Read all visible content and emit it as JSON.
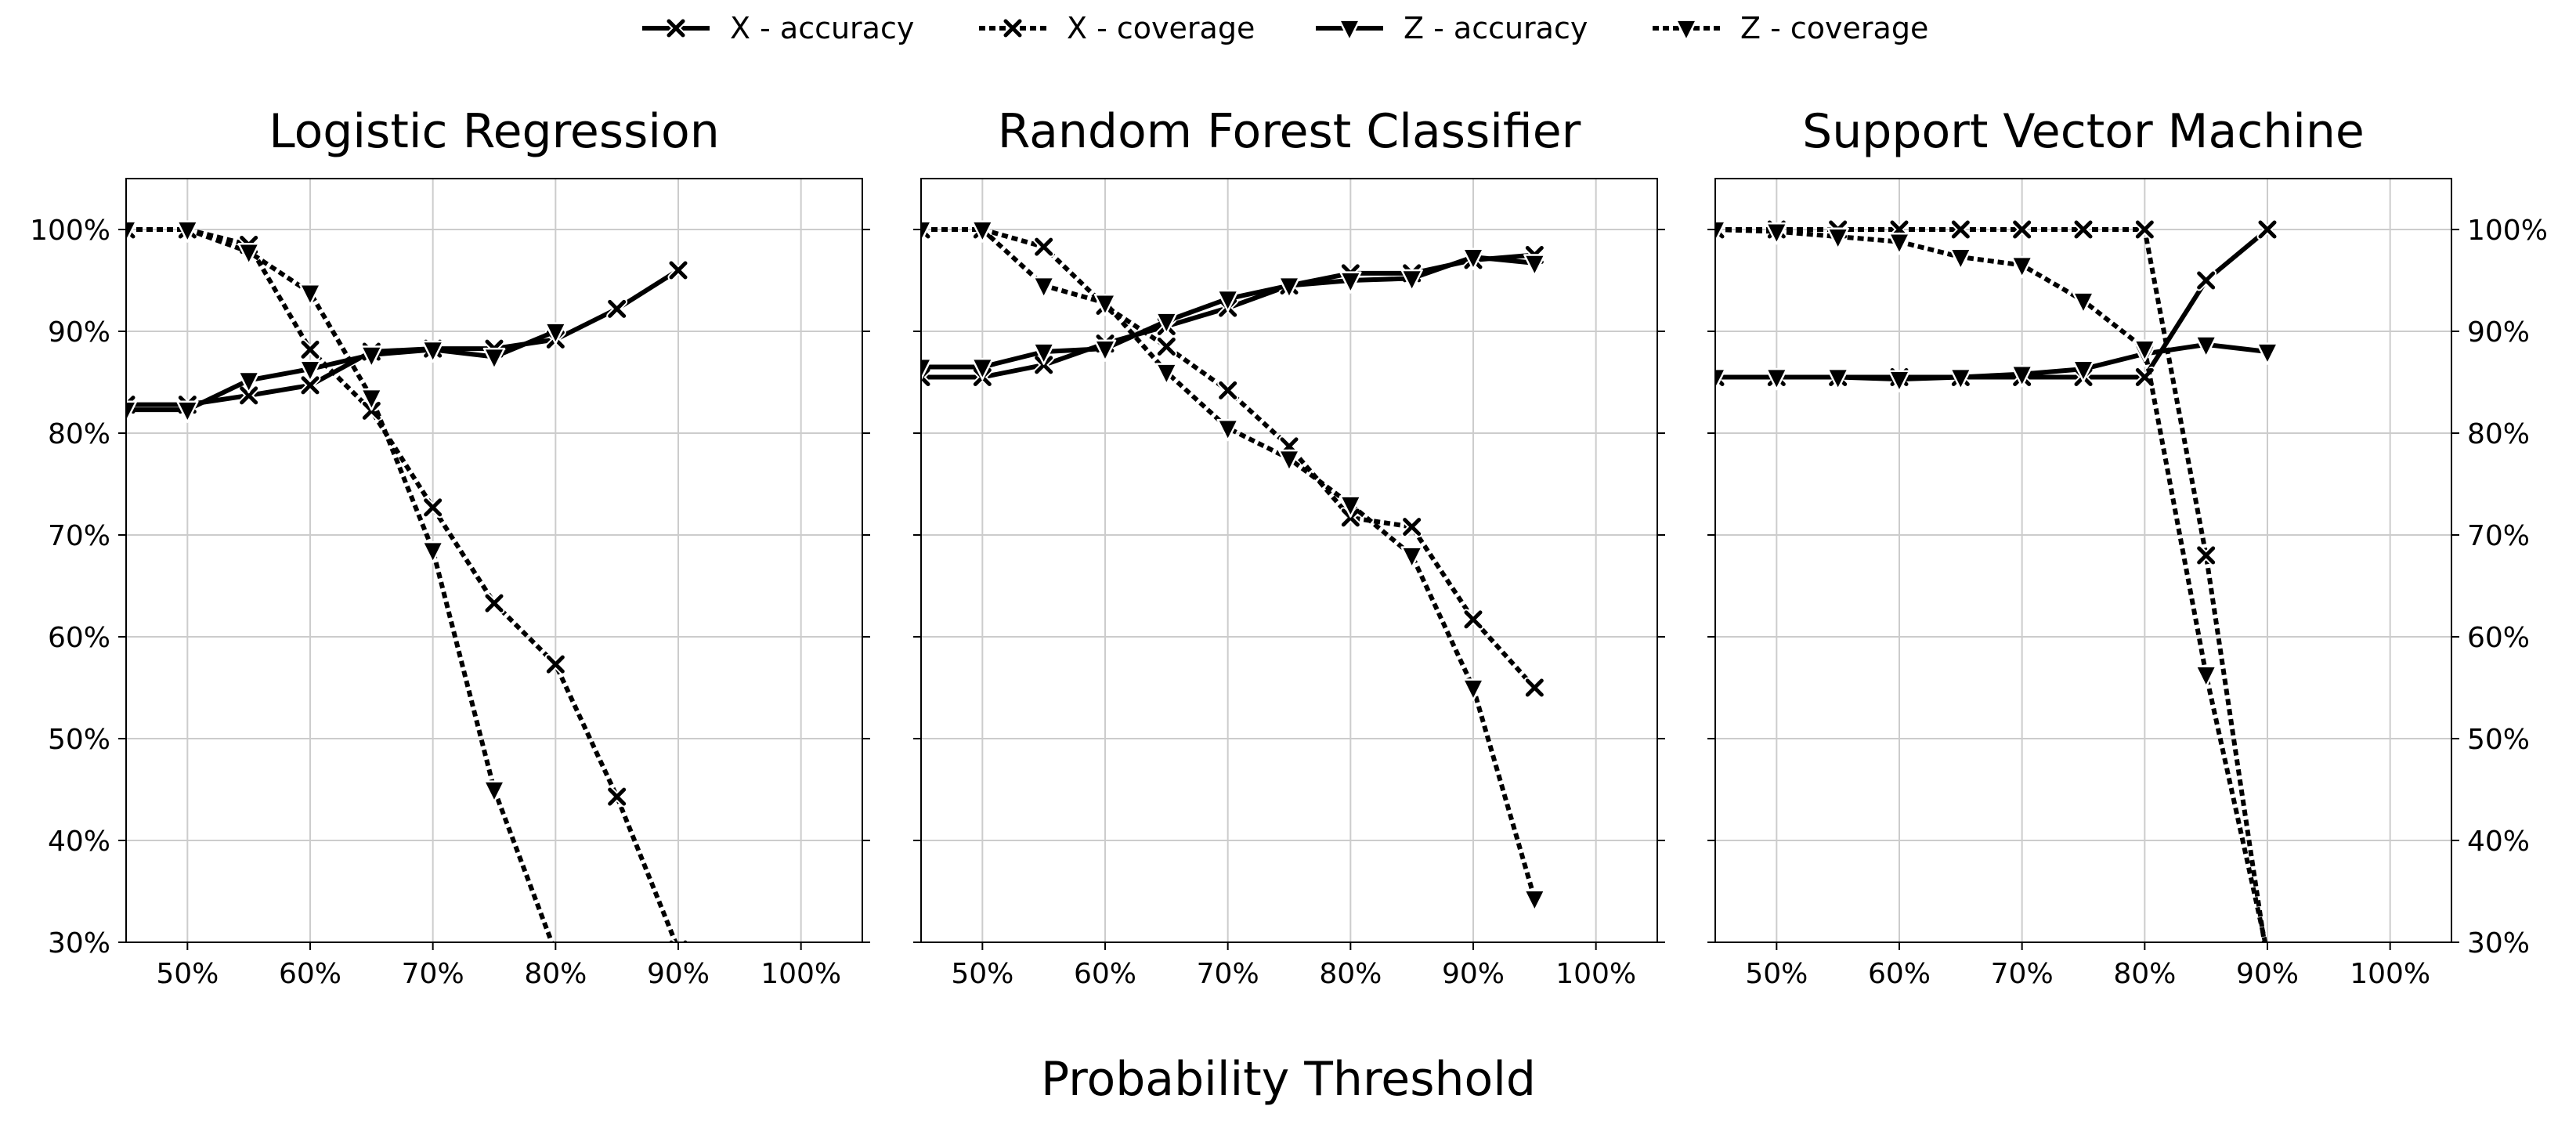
{
  "figure": {
    "xlabel": "Probability Threshold"
  },
  "legend": {
    "placement": "top-center",
    "entries": [
      {
        "label": "X - accuracy",
        "marker": "x-marker",
        "linestyle": "solid"
      },
      {
        "label": "X - coverage",
        "marker": "x-marker",
        "linestyle": "dotted"
      },
      {
        "label": "Z - accuracy",
        "marker": "triangle-down-marker",
        "linestyle": "solid"
      },
      {
        "label": "Z - coverage",
        "marker": "triangle-down-marker",
        "linestyle": "dotted"
      }
    ]
  },
  "colors": {
    "line": "#000000",
    "grid": "#cccccc",
    "background": "#ffffff"
  },
  "chart_data": [
    {
      "type": "line",
      "title": "Logistic Regression",
      "xlim": [
        45,
        105
      ],
      "ylim": [
        30,
        105
      ],
      "xticks": [
        "50%",
        "60%",
        "70%",
        "80%",
        "90%",
        "100%"
      ],
      "yticks": [
        "100%",
        "90%",
        "80%",
        "70%",
        "60%",
        "50%",
        "40%",
        "30%"
      ],
      "yaxis_labels": "left",
      "grid": true,
      "series": [
        {
          "name": "X - accuracy",
          "x": [
            45,
            50,
            55,
            60,
            65,
            70,
            75,
            80,
            85,
            90
          ],
          "y": [
            82.8,
            82.8,
            83.7,
            84.7,
            88.0,
            88.3,
            88.3,
            89.2,
            92.2,
            96.0
          ]
        },
        {
          "name": "X - coverage",
          "x": [
            45,
            50,
            55,
            60,
            65,
            70,
            75,
            80,
            85,
            90
          ],
          "y": [
            100,
            100,
            98.5,
            88.2,
            82.2,
            72.7,
            63.3,
            57.3,
            44.3,
            29.3
          ]
        },
        {
          "name": "Z - accuracy",
          "x": [
            45,
            50,
            55,
            60,
            65,
            70,
            75,
            80
          ],
          "y": [
            82.3,
            82.3,
            85.2,
            86.3,
            87.7,
            88.2,
            87.5,
            90.0
          ]
        },
        {
          "name": "Z - coverage",
          "x": [
            45,
            50,
            55,
            60,
            65,
            70,
            75,
            80
          ],
          "y": [
            100,
            100,
            97.8,
            93.8,
            83.5,
            68.5,
            45.0,
            29.0
          ]
        }
      ]
    },
    {
      "type": "line",
      "title": "Random Forest Classifier",
      "xlim": [
        45,
        105
      ],
      "ylim": [
        30,
        105
      ],
      "xticks": [
        "50%",
        "60%",
        "70%",
        "80%",
        "90%",
        "100%"
      ],
      "yticks": [
        "100%",
        "90%",
        "80%",
        "70%",
        "60%",
        "50%",
        "40%",
        "30%"
      ],
      "yaxis_labels": "none",
      "grid": true,
      "series": [
        {
          "name": "X - accuracy",
          "x": [
            45,
            50,
            55,
            60,
            65,
            70,
            75,
            80,
            85,
            90,
            95
          ],
          "y": [
            85.5,
            85.5,
            86.7,
            88.8,
            90.5,
            92.3,
            94.5,
            95.7,
            95.7,
            97.0,
            97.5
          ]
        },
        {
          "name": "X - coverage",
          "x": [
            45,
            50,
            55,
            60,
            65,
            70,
            75,
            80,
            85,
            90,
            95
          ],
          "y": [
            100,
            100,
            98.3,
            92.5,
            88.5,
            84.2,
            78.7,
            71.7,
            70.8,
            61.7,
            55.0
          ]
        },
        {
          "name": "Z - accuracy",
          "x": [
            45,
            50,
            55,
            60,
            65,
            70,
            75,
            80,
            85,
            90,
            95
          ],
          "y": [
            86.5,
            86.5,
            88.0,
            88.3,
            91.0,
            93.2,
            94.5,
            95.0,
            95.2,
            97.3,
            96.7
          ]
        },
        {
          "name": "Z - coverage",
          "x": [
            45,
            50,
            55,
            60,
            65,
            70,
            75,
            80,
            85,
            90,
            95
          ],
          "y": [
            100,
            100,
            94.5,
            92.8,
            86.0,
            80.5,
            77.5,
            73.0,
            68.0,
            55.0,
            34.3
          ]
        }
      ]
    },
    {
      "type": "line",
      "title": "Support Vector Machine",
      "xlim": [
        45,
        105
      ],
      "ylim": [
        30,
        105
      ],
      "xticks": [
        "50%",
        "60%",
        "70%",
        "80%",
        "90%",
        "100%"
      ],
      "yticks": [
        "100%",
        "90%",
        "80%",
        "70%",
        "60%",
        "50%",
        "40%",
        "30%"
      ],
      "yaxis_labels": "right",
      "grid": true,
      "series": [
        {
          "name": "X - accuracy",
          "x": [
            45,
            50,
            55,
            60,
            65,
            70,
            75,
            80,
            85,
            90
          ],
          "y": [
            85.5,
            85.5,
            85.5,
            85.5,
            85.5,
            85.5,
            85.5,
            85.5,
            95.0,
            100
          ]
        },
        {
          "name": "X - coverage",
          "x": [
            45,
            50,
            55,
            60,
            65,
            70,
            75,
            80,
            85,
            90
          ],
          "y": [
            100,
            100,
            100,
            100,
            100,
            100,
            100,
            100,
            68.0,
            28.0
          ]
        },
        {
          "name": "Z - accuracy",
          "x": [
            45,
            50,
            55,
            60,
            65,
            70,
            75,
            80,
            85,
            90
          ],
          "y": [
            85.5,
            85.5,
            85.5,
            85.3,
            85.5,
            85.8,
            86.3,
            87.8,
            88.7,
            88.0
          ]
        },
        {
          "name": "Z - coverage",
          "x": [
            45,
            50,
            55,
            60,
            65,
            70,
            75,
            80,
            85,
            90
          ],
          "y": [
            100,
            99.8,
            99.3,
            98.8,
            97.3,
            96.5,
            93.0,
            88.3,
            56.3,
            29.0
          ]
        }
      ]
    }
  ]
}
